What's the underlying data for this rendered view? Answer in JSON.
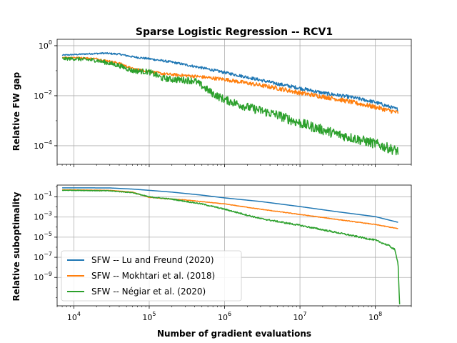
{
  "chart_data": {
    "type": "line",
    "title": "Sparse Logistic Regression -- RCV1",
    "xlabel": "Number of gradient evaluations",
    "x_scale": "log",
    "xlim": [
      6000,
      300000000
    ],
    "x_ticks": [
      {
        "value": 10000,
        "base": "10",
        "exp": "4"
      },
      {
        "value": 100000,
        "base": "10",
        "exp": "5"
      },
      {
        "value": 1000000,
        "base": "10",
        "exp": "6"
      },
      {
        "value": 10000000,
        "base": "10",
        "exp": "7"
      },
      {
        "value": 100000000,
        "base": "10",
        "exp": "8"
      }
    ],
    "grid": true,
    "legend_position": "lower-left of bottom panel",
    "colors": {
      "lu_freund": "#1f77b4",
      "mokhtari": "#ff7f0e",
      "negiar": "#2ca02c"
    },
    "panels": [
      {
        "ylabel": "Relative FW gap",
        "y_scale": "log",
        "ylim": [
          1.8e-05,
          1.8
        ],
        "y_ticks": [
          {
            "value": 1,
            "base": "10",
            "exp": "0"
          },
          {
            "value": 0.01,
            "base": "10",
            "exp": "−2"
          },
          {
            "value": 0.0001,
            "base": "10",
            "exp": "−4"
          }
        ],
        "series": [
          {
            "name": "SFW -- Lu and Freund (2020)",
            "color": "#1f77b4",
            "noise": 0.07,
            "x": [
              7000,
              10000,
              15000,
              25000,
              40000,
              60000,
              100000,
              200000,
              500000,
              1000000,
              2000000,
              5000000,
              10000000,
              20000000,
              50000000,
              100000000,
              200000000
            ],
            "y": [
              0.42,
              0.44,
              0.47,
              0.5,
              0.46,
              0.36,
              0.3,
              0.22,
              0.13,
              0.085,
              0.055,
              0.03,
              0.02,
              0.013,
              0.0085,
              0.0055,
              0.0028
            ]
          },
          {
            "name": "SFW -- Mokhtari et al. (2018)",
            "color": "#ff7f0e",
            "noise": 0.09,
            "x": [
              7000,
              10000,
              20000,
              40000,
              60000,
              100000,
              150000,
              200000,
              400000,
              1000000,
              2000000,
              5000000,
              10000000,
              30000000,
              100000000,
              200000000
            ],
            "y": [
              0.34,
              0.34,
              0.3,
              0.2,
              0.12,
              0.095,
              0.075,
              0.07,
              0.06,
              0.045,
              0.032,
              0.02,
              0.013,
              0.0075,
              0.0035,
              0.0021
            ]
          },
          {
            "name": "SFW -- Négiar et al. (2020)",
            "color": "#2ca02c",
            "noise": 0.2,
            "x": [
              7000,
              10000,
              20000,
              40000,
              60000,
              100000,
              150000,
              200000,
              400000,
              700000,
              1000000,
              2000000,
              5000000,
              10000000,
              30000000,
              100000000,
              200000000
            ],
            "y": [
              0.3,
              0.3,
              0.26,
              0.16,
              0.1,
              0.09,
              0.05,
              0.045,
              0.04,
              0.012,
              0.007,
              0.0035,
              0.0017,
              0.0008,
              0.0003,
              0.00012,
              6e-05
            ]
          }
        ]
      },
      {
        "ylabel": "Relative suboptimality",
        "y_scale": "log",
        "ylim": [
          1.5e-12,
          1.5
        ],
        "y_ticks": [
          {
            "value": 0.1,
            "base": "10",
            "exp": "−1"
          },
          {
            "value": 0.001,
            "base": "10",
            "exp": "−3"
          },
          {
            "value": 1e-05,
            "base": "10",
            "exp": "−5"
          },
          {
            "value": 1e-07,
            "base": "10",
            "exp": "−7"
          },
          {
            "value": 1e-09,
            "base": "10",
            "exp": "−9"
          }
        ],
        "series": [
          {
            "name": "SFW -- Lu and Freund (2020)",
            "color": "#1f77b4",
            "noise": 0,
            "x": [
              7000,
              10000,
              30000,
              60000,
              100000,
              200000,
              500000,
              1000000,
              3000000,
              10000000,
              30000000,
              100000000,
              200000000
            ],
            "y": [
              0.8,
              0.8,
              0.78,
              0.6,
              0.45,
              0.3,
              0.15,
              0.08,
              0.035,
              0.011,
              0.0035,
              0.0011,
              0.0003
            ]
          },
          {
            "name": "SFW -- Mokhtari et al. (2018)",
            "color": "#ff7f0e",
            "noise": 0.03,
            "x": [
              7000,
              10000,
              30000,
              60000,
              100000,
              150000,
              300000,
              1000000,
              3000000,
              10000000,
              30000000,
              100000000,
              200000000
            ],
            "y": [
              0.5,
              0.5,
              0.45,
              0.3,
              0.09,
              0.07,
              0.05,
              0.02,
              0.006,
              0.0018,
              0.0006,
              0.00018,
              7e-05
            ]
          },
          {
            "name": "SFW -- Négiar et al. (2020)",
            "color": "#2ca02c",
            "noise": 0.08,
            "x": [
              7000,
              10000,
              30000,
              60000,
              100000,
              200000,
              500000,
              1000000,
              3000000,
              10000000,
              30000000,
              100000000,
              150000000,
              180000000,
              200000000,
              210000000
            ],
            "y": [
              0.45,
              0.45,
              0.4,
              0.27,
              0.1,
              0.06,
              0.02,
              0.006,
              0.0007,
              0.00015,
              3e-05,
              5e-06,
              1.5e-06,
              6e-07,
              3e-08,
              2e-12
            ]
          }
        ]
      }
    ],
    "legend": [
      {
        "label": "SFW -- Lu and Freund (2020)",
        "color": "#1f77b4"
      },
      {
        "label": "SFW -- Mokhtari et al. (2018)",
        "color": "#ff7f0e"
      },
      {
        "label": "SFW -- Négiar et al. (2020)",
        "color": "#2ca02c"
      }
    ]
  }
}
